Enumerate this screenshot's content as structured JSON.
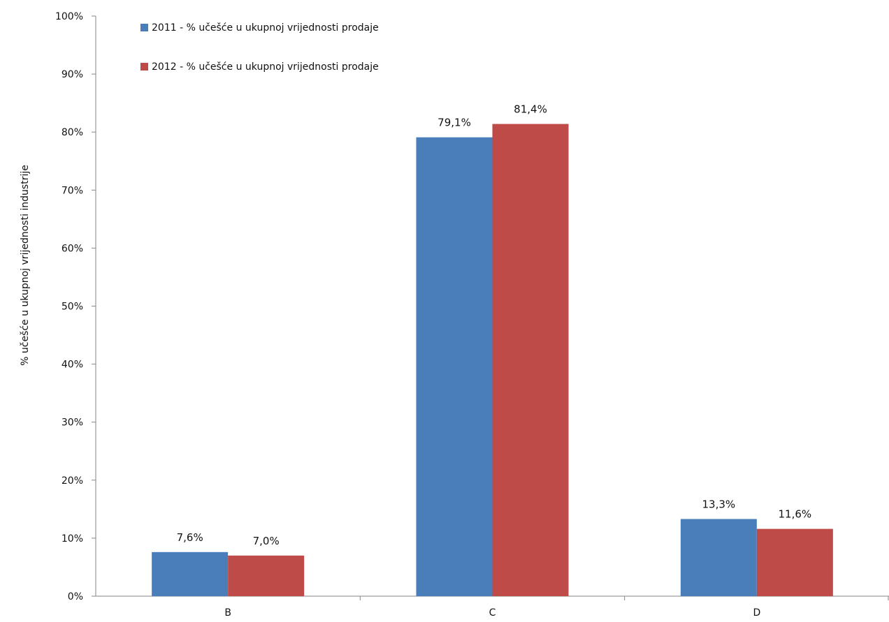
{
  "chart_data": {
    "type": "bar",
    "categories": [
      "B",
      "C",
      "D"
    ],
    "series": [
      {
        "name": "2011 - % učešće u ukupnoj vrijednosti prodaje",
        "values": [
          7.6,
          79.1,
          13.3
        ],
        "labels": [
          "7,6%",
          "79,1%",
          "13,3%"
        ],
        "color": "#4A7EBB"
      },
      {
        "name": "2012 - % učešće u ukupnoj vrijednosti prodaje",
        "values": [
          7.0,
          81.4,
          11.6
        ],
        "labels": [
          "7,0%",
          "81,4%",
          "11,6%"
        ],
        "color": "#BE4B48"
      }
    ],
    "title": "",
    "xlabel": "",
    "ylabel": "% učešće u ukupnoj vrijednosti industrije",
    "ylim": [
      0,
      100
    ],
    "yticks": [
      0,
      10,
      20,
      30,
      40,
      50,
      60,
      70,
      80,
      90,
      100
    ],
    "ytick_labels": [
      "0%",
      "10%",
      "20%",
      "30%",
      "40%",
      "50%",
      "60%",
      "70%",
      "80%",
      "90%",
      "100%"
    ],
    "grid": false,
    "legend_position": "top-left"
  }
}
